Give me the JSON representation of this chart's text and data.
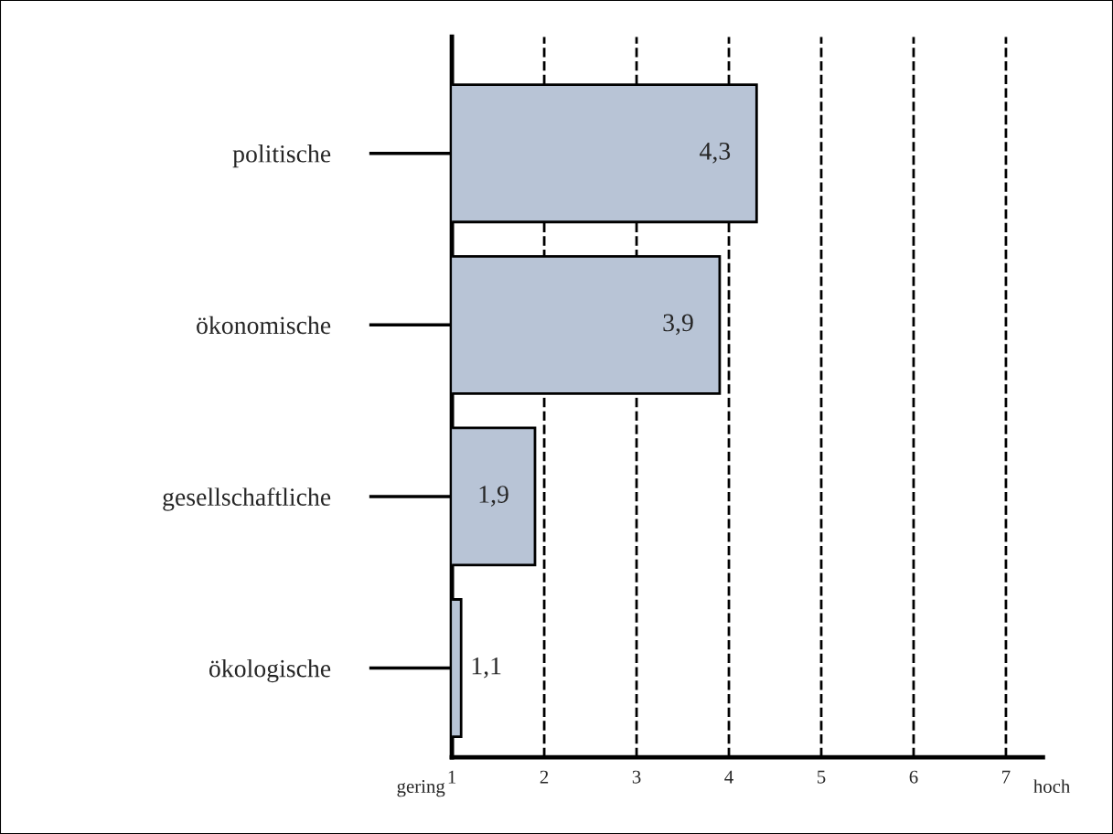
{
  "chart_data": {
    "type": "bar",
    "orientation": "horizontal",
    "categories": [
      "politische",
      "ökonomische",
      "gesellschaftliche",
      "ökologische"
    ],
    "values": [
      4.3,
      3.9,
      1.9,
      1.1
    ],
    "color": "#b8c4d6",
    "value_labels": [
      "4,3",
      "3,9",
      "1,9",
      "1,1"
    ],
    "xlim": [
      1,
      7.4
    ],
    "xticks": [
      1,
      2,
      3,
      4,
      5,
      6,
      7
    ],
    "grid": "x",
    "line_style": "dashed",
    "annotations": [
      "gering",
      "hoch"
    ]
  }
}
